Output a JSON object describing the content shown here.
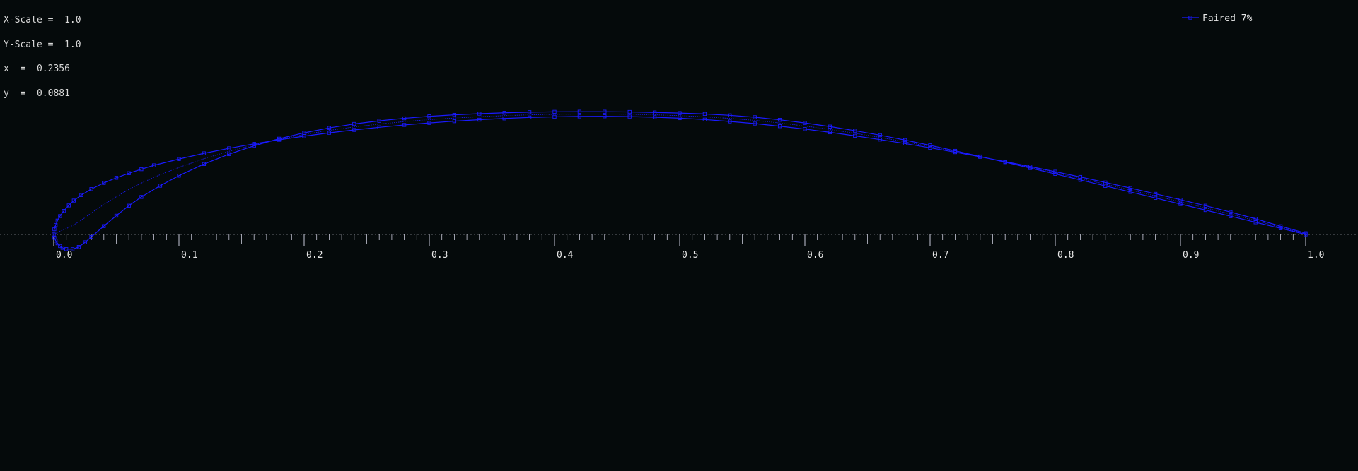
{
  "readout": {
    "xscale_line": "X-Scale =  1.0",
    "yscale_line": "Y-Scale =  1.0",
    "x_line": "x  =  0.2356",
    "y_line": "y  =  0.0881"
  },
  "legend": {
    "label": "Faired 7%",
    "placement": "top-right"
  },
  "colors": {
    "background": "#050a0b",
    "curve": "#1a1aff",
    "axis": "#c8c8d8",
    "text": "#e6e6e6"
  },
  "chart_data": {
    "type": "line",
    "title": "",
    "xlabel": "",
    "ylabel": "",
    "xlim": [
      0.0,
      1.0
    ],
    "xticks": [
      "0.0",
      "0.1",
      "0.2",
      "0.3",
      "0.4",
      "0.5",
      "0.6",
      "0.7",
      "0.8",
      "0.9",
      "1.0"
    ],
    "grid": false,
    "series": [
      {
        "name": "Faired 7%",
        "markers": true,
        "x": [
          1.0,
          0.98,
          0.96,
          0.94,
          0.92,
          0.9,
          0.88,
          0.86,
          0.84,
          0.82,
          0.8,
          0.78,
          0.76,
          0.74,
          0.72,
          0.7,
          0.68,
          0.66,
          0.64,
          0.62,
          0.6,
          0.58,
          0.56,
          0.54,
          0.52,
          0.5,
          0.48,
          0.46,
          0.44,
          0.42,
          0.4,
          0.38,
          0.36,
          0.34,
          0.32,
          0.3,
          0.28,
          0.26,
          0.24,
          0.22,
          0.2,
          0.18,
          0.16,
          0.14,
          0.12,
          0.1,
          0.085,
          0.07,
          0.06,
          0.05,
          0.04,
          0.03,
          0.025,
          0.02,
          0.015,
          0.01,
          0.007,
          0.005,
          0.003,
          0.0015,
          0.0005,
          0.0,
          0.0005,
          0.0015,
          0.003,
          0.005,
          0.008,
          0.012,
          0.016,
          0.022,
          0.03,
          0.04,
          0.05,
          0.06,
          0.07,
          0.08,
          0.1,
          0.12,
          0.14,
          0.16,
          0.18,
          0.2,
          0.22,
          0.24,
          0.26,
          0.28,
          0.3,
          0.32,
          0.34,
          0.36,
          0.38,
          0.4,
          0.42,
          0.44,
          0.46,
          0.48,
          0.5,
          0.52,
          0.54,
          0.56,
          0.58,
          0.6,
          0.62,
          0.64,
          0.66,
          0.68,
          0.7,
          0.72,
          0.74,
          0.76,
          0.78,
          0.8,
          0.82,
          0.84,
          0.86,
          0.88,
          0.9,
          0.92,
          0.94,
          0.96,
          0.98,
          1.0
        ],
        "y": [
          0.0,
          0.0049,
          0.0097,
          0.0146,
          0.0195,
          0.0243,
          0.0292,
          0.034,
          0.0388,
          0.0436,
          0.0484,
          0.0531,
          0.0578,
          0.0624,
          0.0669,
          0.0713,
          0.0755,
          0.0794,
          0.083,
          0.0863,
          0.0892,
          0.0917,
          0.0938,
          0.0953,
          0.0964,
          0.0971,
          0.0976,
          0.098,
          0.0982,
          0.0982,
          0.0981,
          0.0978,
          0.0973,
          0.0966,
          0.0957,
          0.0945,
          0.0929,
          0.0909,
          0.0884,
          0.0852,
          0.0813,
          0.0766,
          0.0709,
          0.0642,
          0.0563,
          0.047,
          0.039,
          0.03,
          0.023,
          0.015,
          0.0067,
          -0.002,
          -0.0063,
          -0.01,
          -0.0118,
          -0.0117,
          -0.0107,
          -0.0093,
          -0.0071,
          -0.0049,
          -0.0027,
          0.0,
          0.0042,
          0.0076,
          0.0111,
          0.0147,
          0.0188,
          0.0232,
          0.0271,
          0.0315,
          0.0363,
          0.0412,
          0.0453,
          0.049,
          0.0522,
          0.0553,
          0.0603,
          0.0649,
          0.0689,
          0.0725,
          0.0757,
          0.0786,
          0.0813,
          0.0836,
          0.0857,
          0.0876,
          0.0892,
          0.0906,
          0.0918,
          0.0928,
          0.0936,
          0.0941,
          0.0944,
          0.0945,
          0.0943,
          0.0938,
          0.093,
          0.0919,
          0.0904,
          0.0887,
          0.0866,
          0.0843,
          0.0817,
          0.0789,
          0.0759,
          0.0727,
          0.0693,
          0.0658,
          0.0621,
          0.0583,
          0.0543,
          0.0502,
          0.046,
          0.0416,
          0.0371,
          0.0325,
          0.0278,
          0.023,
          0.0179,
          0.0125,
          0.0066,
          0.001
        ]
      }
    ]
  }
}
